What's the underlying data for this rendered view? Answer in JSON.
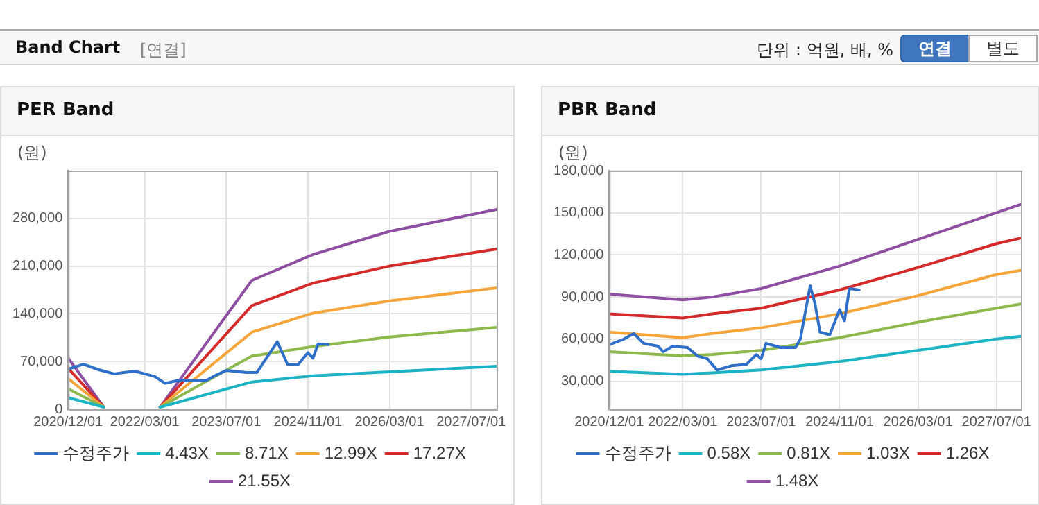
{
  "chart_data": [
    {
      "type": "other",
      "title": "Band Chart",
      "annotations": [
        "[연결]",
        "단위 : 억원, 배, %",
        "연결",
        "별도"
      ]
    },
    {
      "type": "line",
      "title": "PER Band",
      "ylabel": "(원)",
      "xlim": [
        "2020-12-01",
        "2027-12-01"
      ],
      "xticks": [
        {
          "value": "2020-12-01",
          "label": "2020/12/01"
        },
        {
          "value": "2022-03-01",
          "label": "2022/03/01"
        },
        {
          "value": "2023-07-01",
          "label": "2023/07/01"
        },
        {
          "value": "2024-11-01",
          "label": "2024/11/01"
        },
        {
          "value": "2026-03-01",
          "label": "2026/03/01"
        },
        {
          "value": "2027-07-01",
          "label": "2027/07/01"
        }
      ],
      "ylim": [
        0,
        350000
      ],
      "yticks": [
        {
          "value": 0,
          "label": "0"
        },
        {
          "value": 70000,
          "label": "70,000"
        },
        {
          "value": 140000,
          "label": "140,000"
        },
        {
          "value": 210000,
          "label": "210,000"
        },
        {
          "value": 280000,
          "label": "280,000"
        }
      ],
      "grid": true,
      "legend": "bottom",
      "marker": "none",
      "line_style": "solid",
      "series": [
        {
          "name": "수정주가",
          "color": "#2f6fc8",
          "x": [
            "2020-12",
            "2021-03",
            "2021-06",
            "2021-09",
            "2022-01",
            "2022-03",
            "2022-05",
            "2022-07",
            "2022-10",
            "2023-03",
            "2023-05",
            "2023-07",
            "2023-11",
            "2024-01",
            "2024-05",
            "2024-07",
            "2024-09",
            "2024-11",
            "2024-12",
            "2025-01",
            "2025-03"
          ],
          "values": [
            59000,
            66000,
            58000,
            52000,
            56000,
            52000,
            48000,
            38000,
            43000,
            42000,
            50000,
            57000,
            54000,
            54000,
            99000,
            66000,
            65000,
            83000,
            75000,
            96000,
            95000
          ]
        },
        {
          "name": "4.43X",
          "color": "#1cb4c4",
          "x": [
            "2020-12",
            "2021-07",
            "2022-01",
            "2022-06",
            "2023-12",
            "2024-12",
            "2026-03",
            "2027-12"
          ],
          "values": [
            17000,
            3000,
            null,
            3000,
            40000,
            49000,
            55000,
            63000
          ]
        },
        {
          "name": "8.71X",
          "color": "#8cb84c",
          "x": [
            "2020-12",
            "2021-07",
            "2022-01",
            "2022-06",
            "2023-12",
            "2024-12",
            "2026-03",
            "2027-12"
          ],
          "values": [
            30000,
            3000,
            null,
            3000,
            78000,
            92000,
            106000,
            120000
          ]
        },
        {
          "name": "12.99X",
          "color": "#f5a53a",
          "x": [
            "2020-12",
            "2021-07",
            "2022-01",
            "2022-06",
            "2023-12",
            "2024-12",
            "2026-03",
            "2027-12"
          ],
          "values": [
            45000,
            3000,
            null,
            3000,
            113000,
            141000,
            159000,
            178000
          ]
        },
        {
          "name": "17.27X",
          "color": "#d42a2a",
          "x": [
            "2020-12",
            "2021-07",
            "2022-01",
            "2022-06",
            "2023-12",
            "2024-12",
            "2026-03",
            "2027-12"
          ],
          "values": [
            60000,
            3000,
            null,
            3000,
            152000,
            185000,
            210000,
            235000
          ]
        },
        {
          "name": "21.55X",
          "color": "#8e4fa2",
          "x": [
            "2020-12",
            "2021-07",
            "2022-01",
            "2022-06",
            "2023-12",
            "2024-12",
            "2026-03",
            "2027-12"
          ],
          "values": [
            75000,
            3000,
            null,
            3000,
            189000,
            227000,
            261000,
            293000
          ]
        }
      ]
    },
    {
      "type": "line",
      "title": "PBR Band",
      "ylabel": "(원)",
      "xlim": [
        "2020-12-01",
        "2027-12-01"
      ],
      "xticks": [
        {
          "value": "2020-12-01",
          "label": "2020/12/01"
        },
        {
          "value": "2022-03-01",
          "label": "2022/03/01"
        },
        {
          "value": "2023-07-01",
          "label": "2023/07/01"
        },
        {
          "value": "2024-11-01",
          "label": "2024/11/01"
        },
        {
          "value": "2026-03-01",
          "label": "2026/03/01"
        },
        {
          "value": "2027-07-01",
          "label": "2027/07/01"
        }
      ],
      "ylim": [
        10000,
        180000
      ],
      "yticks": [
        {
          "value": 30000,
          "label": "30,000"
        },
        {
          "value": 60000,
          "label": "60,000"
        },
        {
          "value": 90000,
          "label": "90,000"
        },
        {
          "value": 120000,
          "label": "120,000"
        },
        {
          "value": 150000,
          "label": "150,000"
        },
        {
          "value": 180000,
          "label": "180,000"
        }
      ],
      "grid": true,
      "legend": "bottom",
      "marker": "none",
      "line_style": "solid",
      "series": [
        {
          "name": "수정주가",
          "color": "#2f6fc8",
          "x": [
            "2020-12",
            "2021-03",
            "2021-05",
            "2021-07",
            "2021-10",
            "2021-11",
            "2022-01",
            "2022-04",
            "2022-06",
            "2022-08",
            "2022-10",
            "2023-01",
            "2023-04",
            "2023-06",
            "2023-07",
            "2023-08",
            "2023-11",
            "2024-02",
            "2024-03",
            "2024-05",
            "2024-06",
            "2024-07",
            "2024-09",
            "2024-11",
            "2024-12",
            "2025-01",
            "2025-03"
          ],
          "values": [
            56000,
            60000,
            64000,
            57000,
            55000,
            51000,
            55000,
            54000,
            48000,
            46000,
            38000,
            41000,
            42000,
            49000,
            46000,
            57000,
            54000,
            54000,
            60000,
            98000,
            85000,
            65000,
            63000,
            81000,
            73000,
            96000,
            95000
          ]
        },
        {
          "name": "0.58X",
          "color": "#1cb4c4",
          "x": [
            "2020-12",
            "2022-03",
            "2022-09",
            "2023-07",
            "2024-11",
            "2026-03",
            "2027-07",
            "2027-12"
          ],
          "values": [
            37000,
            35000,
            36000,
            38000,
            44000,
            52000,
            60000,
            62000
          ]
        },
        {
          "name": "0.81X",
          "color": "#8cb84c",
          "x": [
            "2020-12",
            "2022-03",
            "2022-09",
            "2023-07",
            "2024-11",
            "2026-03",
            "2027-07",
            "2027-12"
          ],
          "values": [
            51000,
            48000,
            49000,
            52000,
            61000,
            72000,
            82000,
            85000
          ]
        },
        {
          "name": "1.03X",
          "color": "#f5a53a",
          "x": [
            "2020-12",
            "2022-03",
            "2022-09",
            "2023-07",
            "2024-11",
            "2026-03",
            "2027-07",
            "2027-12"
          ],
          "values": [
            65000,
            61000,
            64000,
            68000,
            78000,
            91000,
            106000,
            109000
          ]
        },
        {
          "name": "1.26X",
          "color": "#d42a2a",
          "x": [
            "2020-12",
            "2022-03",
            "2022-09",
            "2023-07",
            "2024-11",
            "2026-03",
            "2027-07",
            "2027-12"
          ],
          "values": [
            78000,
            75000,
            78000,
            82000,
            95000,
            111000,
            128000,
            132000
          ]
        },
        {
          "name": "1.48X",
          "color": "#8e4fa2",
          "x": [
            "2020-12",
            "2022-03",
            "2022-09",
            "2023-07",
            "2024-11",
            "2026-03",
            "2027-07",
            "2027-12"
          ],
          "values": [
            92000,
            88000,
            90000,
            96000,
            112000,
            131000,
            150000,
            156000
          ]
        }
      ]
    }
  ]
}
